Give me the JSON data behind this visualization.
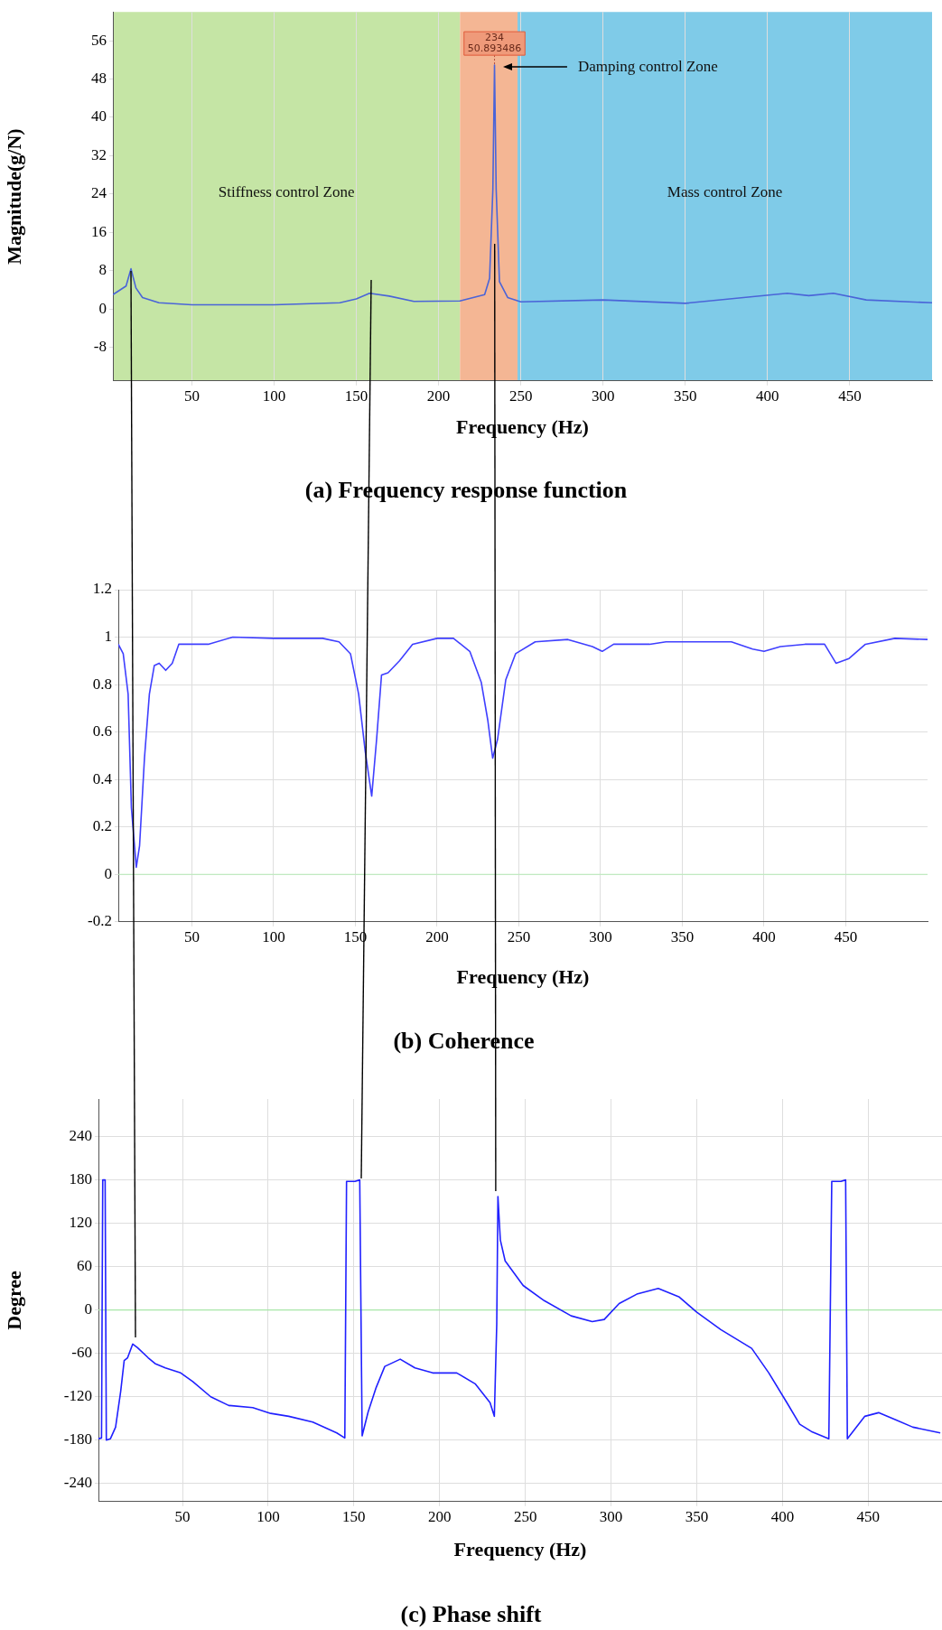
{
  "chart_data": [
    {
      "type": "line",
      "title": "(a) Frequency response function",
      "xlabel": "Frequency (Hz)",
      "ylabel": "Magnitude(g/N)",
      "xlim": [
        2,
        500
      ],
      "ylim": [
        -15,
        62
      ],
      "xticks": [
        50,
        100,
        150,
        200,
        250,
        300,
        350,
        400,
        450
      ],
      "yticks": [
        -8,
        0,
        8,
        16,
        24,
        32,
        40,
        48,
        56
      ],
      "grid": "x",
      "series": [
        {
          "color": "#4a64d8",
          "x": [
            2,
            10,
            13,
            16,
            20,
            30,
            50,
            100,
            140,
            150,
            158,
            170,
            185,
            213,
            228,
            231,
            233,
            234,
            235,
            237,
            242,
            250,
            300,
            350,
            412,
            425,
            440,
            460,
            500
          ],
          "values": [
            3,
            4.8,
            8.4,
            4.4,
            2.4,
            1.3,
            0.9,
            0.9,
            1.3,
            2.1,
            3.3,
            2.7,
            1.6,
            1.7,
            3,
            6.4,
            25,
            50.893486,
            25,
            5.7,
            2.4,
            1.5,
            1.9,
            1.2,
            3.3,
            2.8,
            3.3,
            1.9,
            1.3
          ]
        }
      ],
      "bands": [
        {
          "axis": "x",
          "from": 2,
          "to": 213,
          "label": "Stiffness control Zone",
          "color": "#c5e5a5"
        },
        {
          "axis": "x",
          "from": 213,
          "to": 248,
          "label": "Damping control Zone",
          "color": "#f4b694"
        },
        {
          "axis": "x",
          "from": 248,
          "to": 500,
          "label": "Mass control Zone",
          "color": "#7fcbe8"
        }
      ],
      "annotations": [
        {
          "text": "234\n50.893486",
          "x": 234,
          "y": 50.893486
        }
      ]
    },
    {
      "type": "line",
      "title": "(b) Coherence",
      "xlabel": "Frequency (Hz)",
      "xlim": [
        5,
        500
      ],
      "ylim": [
        -0.2,
        1.2
      ],
      "xticks": [
        50,
        100,
        150,
        200,
        250,
        300,
        350,
        400,
        450
      ],
      "yticks": [
        -0.2,
        0,
        0.2,
        0.4,
        0.6,
        0.8,
        1,
        1.2
      ],
      "grid": true,
      "series": [
        {
          "color": "#3f3fff",
          "x": [
            5,
            8,
            11,
            13,
            16,
            18,
            21,
            24,
            27,
            30,
            34,
            38,
            42,
            50,
            60,
            75,
            100,
            130,
            140,
            147,
            152,
            156,
            160,
            163,
            166,
            170,
            177,
            185,
            200,
            210,
            220,
            227,
            231,
            234,
            237,
            242,
            248,
            260,
            280,
            295,
            301,
            308,
            330,
            340,
            380,
            393,
            400,
            410,
            425,
            437,
            444,
            452,
            462,
            480,
            500
          ],
          "values": [
            0.97,
            0.93,
            0.76,
            0.28,
            0.03,
            0.12,
            0.49,
            0.76,
            0.88,
            0.89,
            0.86,
            0.89,
            0.97,
            0.97,
            0.97,
            1,
            0.995,
            0.995,
            0.98,
            0.93,
            0.76,
            0.52,
            0.33,
            0.57,
            0.84,
            0.85,
            0.9,
            0.97,
            0.995,
            0.995,
            0.94,
            0.81,
            0.65,
            0.49,
            0.57,
            0.82,
            0.93,
            0.98,
            0.99,
            0.96,
            0.94,
            0.97,
            0.97,
            0.98,
            0.98,
            0.95,
            0.94,
            0.96,
            0.97,
            0.97,
            0.89,
            0.91,
            0.97,
            0.995,
            0.99
          ]
        }
      ],
      "ref_lines": [
        {
          "axis": "y",
          "value": 0,
          "color": "#b8ecb8"
        }
      ]
    },
    {
      "type": "line",
      "title": "(c) Phase shift",
      "xlabel": "Frequency (Hz)",
      "ylabel": "Degree",
      "xlim": [
        1,
        493
      ],
      "ylim": [
        -265,
        292
      ],
      "xticks": [
        50,
        100,
        150,
        200,
        250,
        300,
        350,
        400,
        450
      ],
      "yticks": [
        -240,
        -180,
        -120,
        -60,
        0,
        60,
        120,
        180,
        240
      ],
      "grid": true,
      "series": [
        {
          "color": "#2020ff",
          "x": [
            1,
            2.8,
            3.5,
            4.9,
            5.6,
            8,
            11,
            14,
            16,
            18,
            21,
            23.8,
            30,
            34,
            40,
            49,
            56,
            66.5,
            77,
            91,
            101.5,
            112,
            126,
            140,
            144.7,
            145.7,
            150.6,
            153.4,
            154.8,
            158.3,
            163,
            168,
            177,
            185.6,
            196,
            210,
            220.7,
            229.4,
            231.9,
            233.3,
            234,
            235.4,
            238.2,
            248.7,
            261,
            276.7,
            289,
            296,
            304.7,
            315,
            327.5,
            339.8,
            350,
            364,
            382,
            392,
            403,
            410,
            416.8,
            427,
            428.7,
            434,
            436.8,
            437.8,
            448,
            456,
            466,
            476,
            492
          ],
          "values": [
            -178,
            -177,
            180,
            180,
            -180,
            -178,
            -162,
            -112,
            -70,
            -66,
            -47,
            -52,
            -66,
            -74,
            -80,
            -87,
            -99,
            -120,
            -132,
            -135,
            -143,
            -147,
            -155,
            -170,
            -177,
            178,
            178,
            180,
            -174,
            -141,
            -107,
            -78,
            -68,
            -80,
            -87,
            -87,
            -102,
            -128,
            -147,
            -20,
            157,
            97,
            68,
            34,
            13,
            -8,
            -16,
            -13,
            9,
            22,
            30,
            18,
            -3,
            -27,
            -53,
            -87,
            -130,
            -158,
            -168,
            -178,
            178,
            178,
            180,
            -178,
            -147,
            -142,
            -152,
            -162,
            -170
          ]
        }
      ],
      "ref_lines": [
        {
          "axis": "y",
          "value": 0,
          "color": "#a8e6a8"
        }
      ]
    }
  ]
}
